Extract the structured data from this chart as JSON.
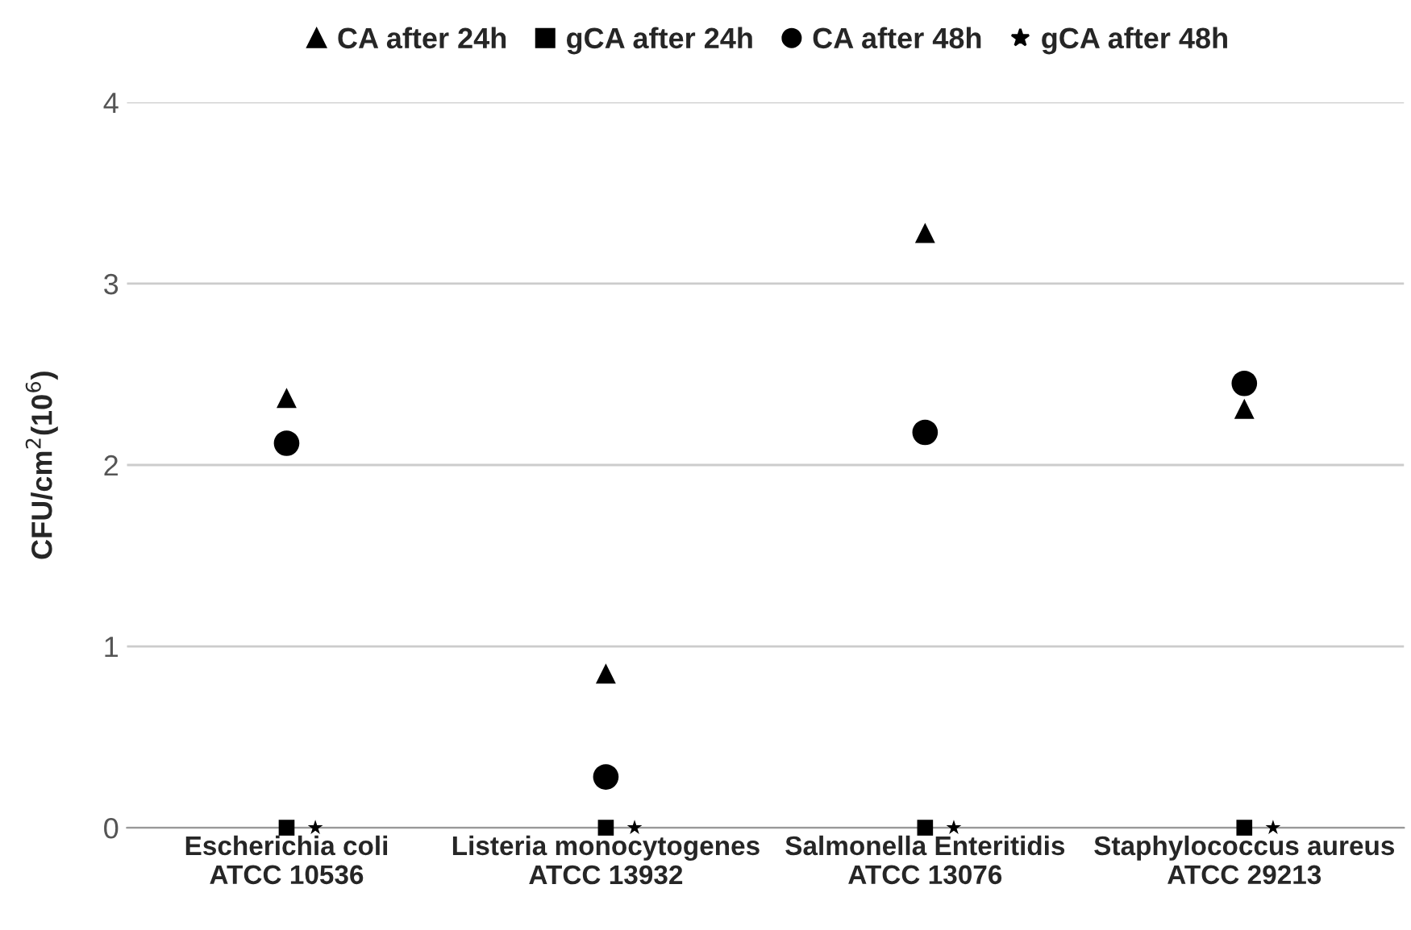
{
  "chart_data": {
    "type": "scatter",
    "ylabel": "CFU/cm$^{2}$(10$^{6}$)",
    "categories": [
      "Escherichia coli\nATCC 10536",
      "Listeria monocytogenes\nATCC 13932",
      "Salmonella Enteritidis\nATCC 13076",
      "Staphylococcus aureus\nATCC 29213"
    ],
    "series": [
      {
        "name": "CA after 24h",
        "color": "#000000",
        "marker": "triangle",
        "values": [
          2.37,
          0.85,
          3.28,
          2.31
        ]
      },
      {
        "name": "gCA after 24h",
        "color": "#000000",
        "marker": "square",
        "values": [
          0,
          0,
          0,
          0
        ]
      },
      {
        "name": "CA after 48h",
        "color": "#000000",
        "marker": "circle",
        "values": [
          2.12,
          0.28,
          2.18,
          2.45
        ]
      },
      {
        "name": "gCA after 48h",
        "color": "#000000",
        "marker": "star",
        "values": [
          0,
          0,
          0,
          0
        ]
      }
    ],
    "ylim": [
      0,
      4
    ],
    "yticks": [
      0,
      1,
      2,
      3,
      4
    ],
    "grid": "y",
    "legend": "top"
  }
}
